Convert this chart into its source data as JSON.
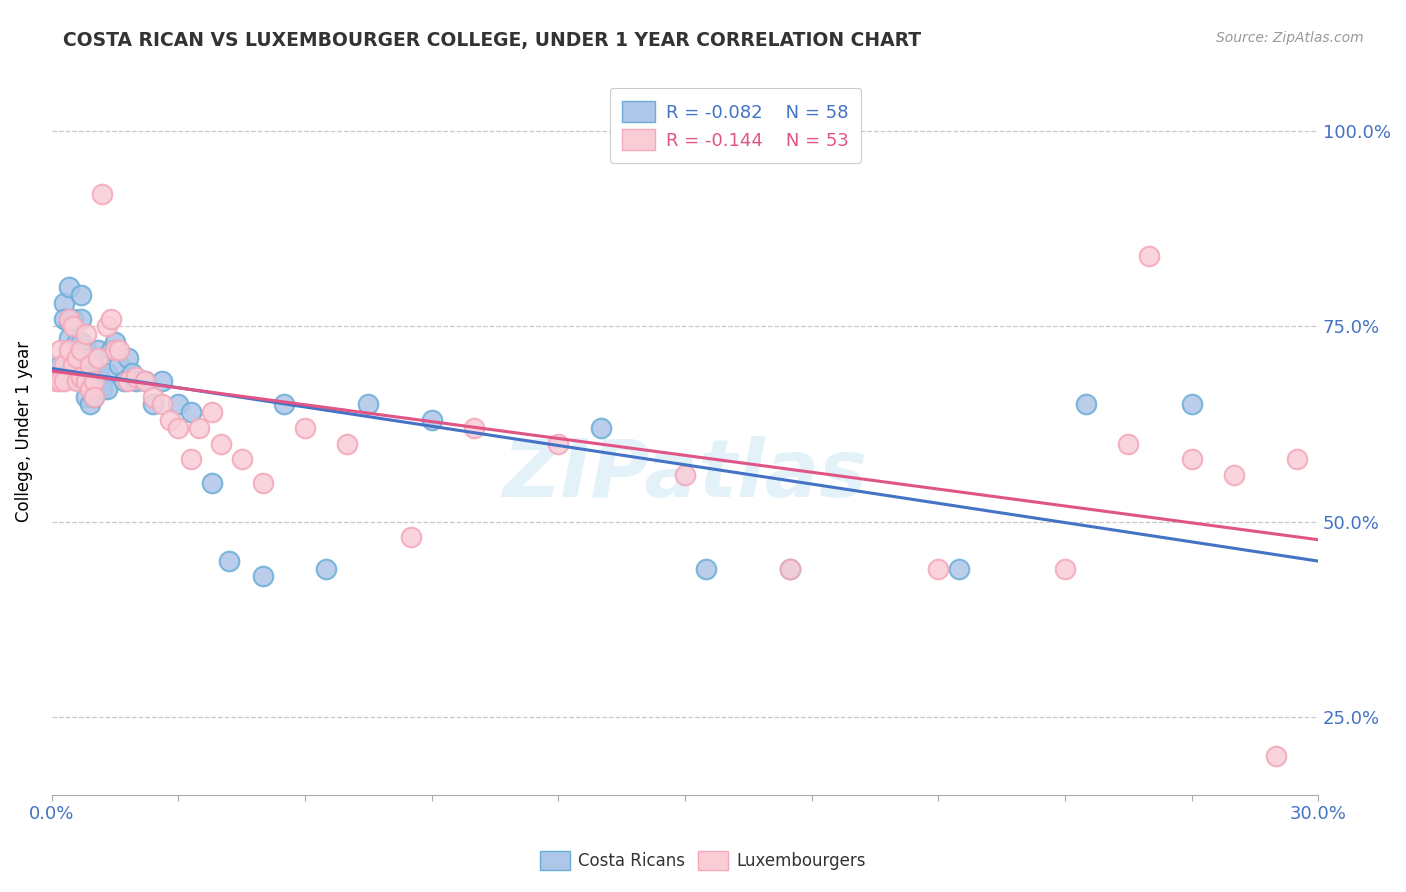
{
  "title": "COSTA RICAN VS LUXEMBOURGER COLLEGE, UNDER 1 YEAR CORRELATION CHART",
  "source_text": "Source: ZipAtlas.com",
  "ylabel": "College, Under 1 year",
  "xlim": [
    0.0,
    0.3
  ],
  "ylim": [
    0.15,
    1.08
  ],
  "xticks": [
    0.0,
    0.03,
    0.06,
    0.09,
    0.12,
    0.15,
    0.18,
    0.21,
    0.24,
    0.27,
    0.3
  ],
  "yticks": [
    0.25,
    0.5,
    0.75,
    1.0
  ],
  "ytick_labels": [
    "25.0%",
    "50.0%",
    "75.0%",
    "100.0%"
  ],
  "blue_color": "#6aaed6",
  "blue_face": "#aec6e8",
  "pink_color": "#f4a7b9",
  "pink_face": "#f9cdd6",
  "blue_line_color": "#4472c4",
  "pink_line_color": "#e05585",
  "legend_r1": "R = -0.082",
  "legend_n1": "N = 58",
  "legend_r2": "R = -0.144",
  "legend_n2": "N = 53",
  "watermark": "ZIPatlas",
  "blue_scatter_x": [
    0.001,
    0.002,
    0.002,
    0.003,
    0.003,
    0.004,
    0.004,
    0.004,
    0.005,
    0.005,
    0.005,
    0.006,
    0.006,
    0.006,
    0.007,
    0.007,
    0.007,
    0.007,
    0.008,
    0.008,
    0.008,
    0.009,
    0.009,
    0.009,
    0.01,
    0.01,
    0.01,
    0.011,
    0.011,
    0.012,
    0.012,
    0.013,
    0.013,
    0.014,
    0.015,
    0.016,
    0.017,
    0.018,
    0.019,
    0.02,
    0.022,
    0.024,
    0.026,
    0.03,
    0.033,
    0.038,
    0.042,
    0.05,
    0.055,
    0.065,
    0.075,
    0.09,
    0.13,
    0.155,
    0.175,
    0.215,
    0.245,
    0.27
  ],
  "blue_scatter_y": [
    0.685,
    0.7,
    0.685,
    0.78,
    0.76,
    0.8,
    0.755,
    0.735,
    0.76,
    0.7,
    0.685,
    0.7,
    0.73,
    0.685,
    0.79,
    0.76,
    0.73,
    0.68,
    0.72,
    0.7,
    0.66,
    0.71,
    0.68,
    0.65,
    0.7,
    0.68,
    0.66,
    0.72,
    0.69,
    0.68,
    0.67,
    0.69,
    0.67,
    0.72,
    0.73,
    0.7,
    0.68,
    0.71,
    0.69,
    0.68,
    0.68,
    0.65,
    0.68,
    0.65,
    0.64,
    0.55,
    0.45,
    0.43,
    0.65,
    0.44,
    0.65,
    0.63,
    0.62,
    0.44,
    0.44,
    0.44,
    0.65,
    0.65
  ],
  "pink_scatter_x": [
    0.001,
    0.002,
    0.002,
    0.003,
    0.003,
    0.004,
    0.004,
    0.005,
    0.005,
    0.006,
    0.006,
    0.007,
    0.007,
    0.008,
    0.008,
    0.009,
    0.009,
    0.01,
    0.01,
    0.011,
    0.012,
    0.013,
    0.014,
    0.015,
    0.016,
    0.018,
    0.02,
    0.022,
    0.024,
    0.026,
    0.028,
    0.03,
    0.033,
    0.035,
    0.038,
    0.04,
    0.045,
    0.05,
    0.06,
    0.07,
    0.085,
    0.1,
    0.12,
    0.15,
    0.175,
    0.21,
    0.24,
    0.255,
    0.26,
    0.27,
    0.28,
    0.29,
    0.295
  ],
  "pink_scatter_y": [
    0.68,
    0.72,
    0.68,
    0.7,
    0.68,
    0.76,
    0.72,
    0.75,
    0.7,
    0.71,
    0.68,
    0.72,
    0.685,
    0.74,
    0.68,
    0.7,
    0.67,
    0.68,
    0.66,
    0.71,
    0.92,
    0.75,
    0.76,
    0.72,
    0.72,
    0.68,
    0.685,
    0.68,
    0.66,
    0.65,
    0.63,
    0.62,
    0.58,
    0.62,
    0.64,
    0.6,
    0.58,
    0.55,
    0.62,
    0.6,
    0.48,
    0.62,
    0.6,
    0.56,
    0.44,
    0.44,
    0.44,
    0.6,
    0.84,
    0.58,
    0.56,
    0.2,
    0.58
  ],
  "background_color": "#ffffff",
  "grid_color": "#c8c8c8",
  "title_color": "#333333",
  "source_color": "#999999",
  "axis_color": "#4472c4"
}
